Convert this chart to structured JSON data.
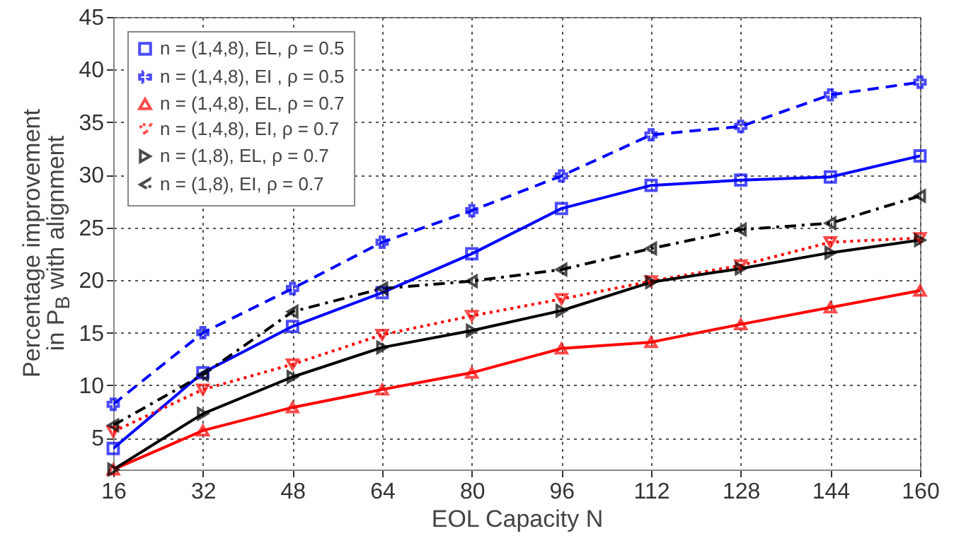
{
  "chart_data": {
    "type": "line",
    "xlabel": "EOL Capacity N",
    "ylabel": "Percentage improvement\nin P$_{B}$ with alignment",
    "x": [
      16,
      32,
      48,
      64,
      80,
      96,
      112,
      128,
      144,
      160
    ],
    "xlim": [
      16,
      160
    ],
    "xticks": [
      16,
      32,
      48,
      64,
      80,
      96,
      112,
      128,
      144,
      160
    ],
    "ylim": [
      2,
      45
    ],
    "yticks": [
      5,
      10,
      15,
      20,
      25,
      30,
      35,
      40,
      45
    ],
    "grid": true,
    "legend": "top left",
    "series": [
      {
        "name": "n = (1,4,8), EL, ρ = 0.5",
        "color": "#0000ff",
        "marker": "square",
        "line_style": "solid",
        "values": [
          4,
          11.2,
          15.6,
          18.8,
          22.5,
          26.8,
          29,
          29.5,
          29.8,
          31.8
        ]
      },
      {
        "name": "n = (1,4,8), EI , ρ = 0.5",
        "color": "#0000ff",
        "marker": "cross",
        "line_style": "dashed",
        "values": [
          8.2,
          15,
          19.2,
          23.6,
          26.6,
          29.9,
          33.8,
          34.6,
          37.6,
          38.8
        ]
      },
      {
        "name": "n = (1,4,8), EL, ρ = 0.7",
        "color": "#ff0000",
        "marker": "triangle-up",
        "line_style": "solid",
        "values": [
          2,
          5.7,
          7.9,
          9.6,
          11.2,
          13.5,
          14.1,
          15.8,
          17.4,
          19
        ]
      },
      {
        "name": "n = (1,4,8), EI, ρ = 0.7",
        "color": "#ff0000",
        "marker": "triangle-down",
        "line_style": "dotted",
        "values": [
          5.6,
          9.6,
          12,
          14.8,
          16.6,
          18.2,
          19.9,
          21.4,
          23.6,
          24
        ]
      },
      {
        "name": "n = (1,8), EL, ρ = 0.7",
        "color": "#000000",
        "marker": "triangle-right",
        "line_style": "solid",
        "values": [
          2,
          7.3,
          10.8,
          13.6,
          15.2,
          17.1,
          19.8,
          21.1,
          22.6,
          23.8
        ]
      },
      {
        "name": "n = (1,8), EI, ρ = 0.7",
        "color": "#000000",
        "marker": "triangle-left",
        "line_style": "dashdot",
        "values": [
          6.2,
          11,
          17,
          19.2,
          19.9,
          21,
          23,
          24.8,
          25.4,
          28
        ]
      }
    ]
  }
}
